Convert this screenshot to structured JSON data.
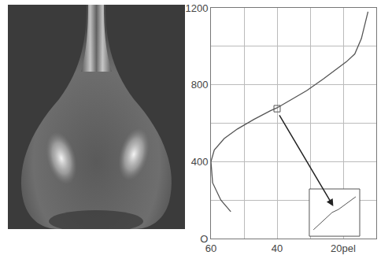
{
  "chart_data": {
    "type": "line",
    "x": [
      54,
      57,
      59.5,
      60,
      59,
      56,
      52,
      47,
      42,
      40,
      36,
      31,
      26,
      22,
      19,
      16.5,
      14.5,
      12.5
    ],
    "values": [
      140,
      200,
      290,
      400,
      460,
      520,
      570,
      620,
      665,
      680,
      720,
      770,
      830,
      880,
      920,
      960,
      1040,
      1180
    ],
    "color": "#555555",
    "xlim": [
      60,
      10
    ],
    "ylim": [
      0,
      1200
    ],
    "xticks": [
      60,
      40,
      {
        "value": 20,
        "label": "20pel"
      }
    ],
    "yticks": [
      {
        "value": 0,
        "label": "O"
      },
      400,
      800,
      1200
    ],
    "grid": true
  }
}
